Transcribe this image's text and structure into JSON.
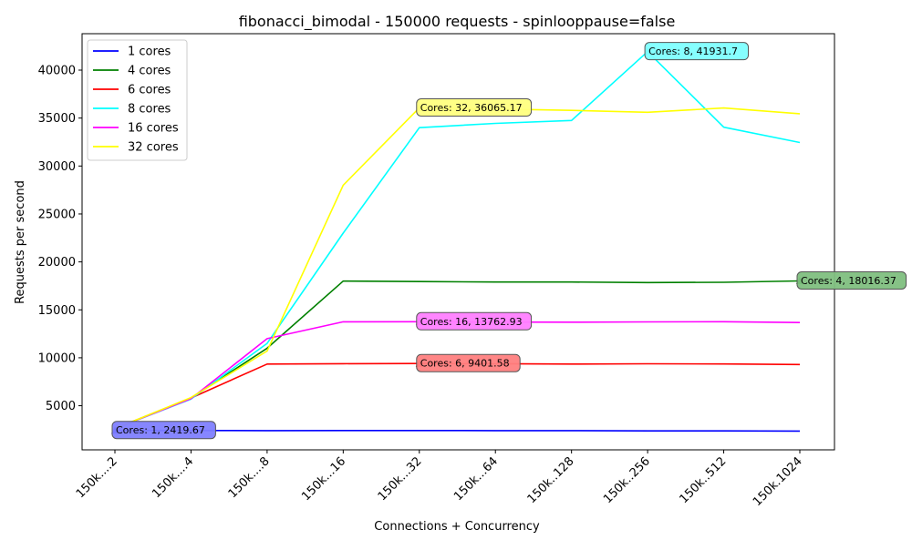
{
  "chart_data": {
    "type": "line",
    "title": "fibonacci_bimodal - 150000 requests - spinlooppause=false",
    "xlabel": "Connections + Concurrency",
    "ylabel": "Requests per second",
    "categories": [
      "150k....2",
      "150k....4",
      "150k....8",
      "150k...16",
      "150k...32",
      "150k...64",
      "150k..128",
      "150k..256",
      "150k..512",
      "150k.1024"
    ],
    "ylim": [
      400,
      43800
    ],
    "yticks": [
      5000,
      10000,
      15000,
      20000,
      25000,
      30000,
      35000,
      40000
    ],
    "grid": false,
    "legend_position": "top-left",
    "series": [
      {
        "name": "1 cores",
        "color": "#0000ff",
        "values": [
          2420,
          2410,
          2400,
          2410,
          2410,
          2400,
          2400,
          2380,
          2380,
          2360
        ],
        "annotation": "Cores: 1, 2419.67",
        "annotation_index": 0,
        "box_color": "#7f7fff"
      },
      {
        "name": "4 cores",
        "color": "#008000",
        "values": [
          2600,
          5800,
          11000,
          18000,
          17950,
          17900,
          17900,
          17850,
          17870,
          18016.37
        ],
        "annotation": "Cores: 4, 18016.37",
        "annotation_index": 9,
        "box_color": "#7fbf7f"
      },
      {
        "name": "6 cores",
        "color": "#ff0000",
        "values": [
          2600,
          5800,
          9350,
          9380,
          9401.58,
          9380,
          9350,
          9370,
          9360,
          9300
        ],
        "annotation": "Cores: 6, 9401.58",
        "annotation_index": 4,
        "box_color": "#ff7f7f"
      },
      {
        "name": "8 cores",
        "color": "#00ffff",
        "values": [
          2600,
          5700,
          11500,
          23000,
          34000,
          34450,
          34750,
          41931.7,
          34050,
          32450
        ],
        "annotation": "Cores: 8, 41931.7",
        "annotation_index": 7,
        "box_color": "#7fffff"
      },
      {
        "name": "16 cores",
        "color": "#ff00ff",
        "values": [
          2600,
          5750,
          12000,
          13750,
          13762.93,
          13720,
          13710,
          13740,
          13760,
          13680
        ],
        "annotation": "Cores: 16, 13762.93",
        "annotation_index": 4,
        "box_color": "#ff7fff"
      },
      {
        "name": "32 cores",
        "color": "#ffff00",
        "values": [
          2600,
          5850,
          10700,
          28000,
          36065.17,
          35950,
          35800,
          35600,
          36050,
          35450
        ],
        "annotation": "Cores: 32, 36065.17",
        "annotation_index": 4,
        "box_color": "#ffff7f"
      }
    ]
  }
}
